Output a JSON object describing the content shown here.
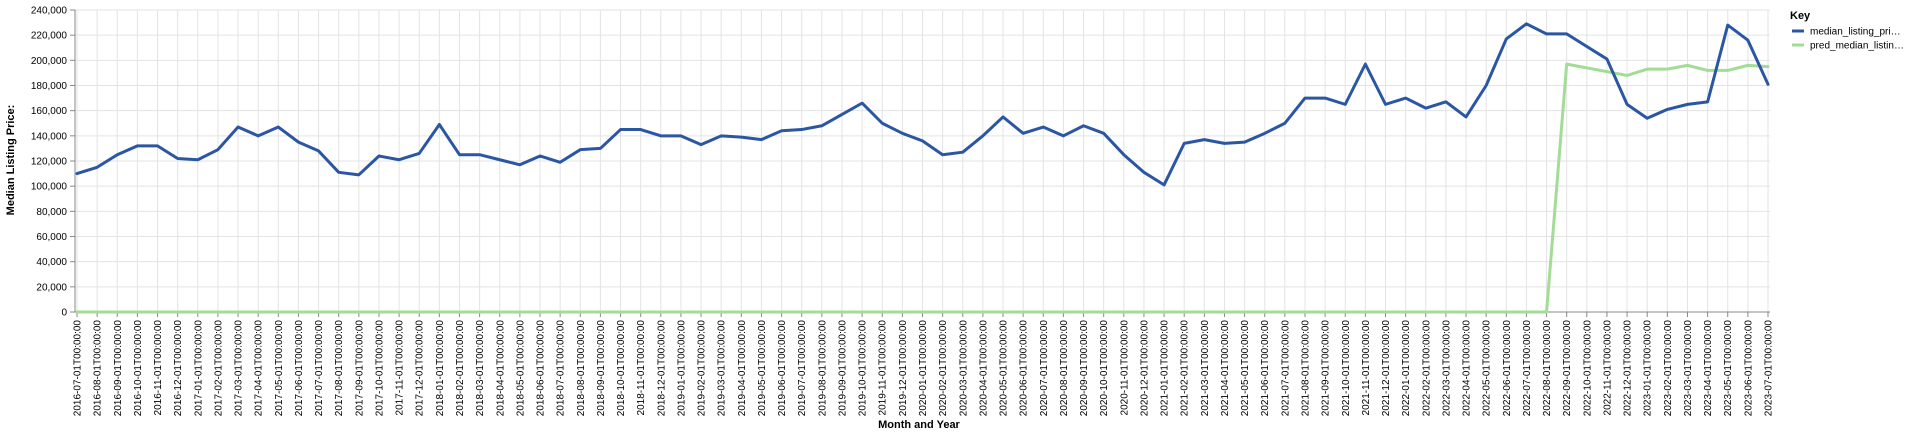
{
  "chart_data": {
    "type": "line",
    "xlabel": "Month and Year",
    "ylabel": "Median Listing Price:",
    "ylim": [
      0,
      240000
    ],
    "yticks": [
      0,
      20000,
      40000,
      60000,
      80000,
      100000,
      120000,
      140000,
      160000,
      180000,
      200000,
      220000,
      240000
    ],
    "ytick_labels": [
      "0",
      "20,000",
      "40,000",
      "60,000",
      "80,000",
      "100,000",
      "120,000",
      "140,000",
      "160,000",
      "180,000",
      "200,000",
      "220,000",
      "240,000"
    ],
    "grid": true,
    "legend": {
      "title": "Key",
      "placement": "right"
    },
    "x": [
      "2016-07-01T00:00:00",
      "2016-08-01T00:00:00",
      "2016-09-01T00:00:00",
      "2016-10-01T00:00:00",
      "2016-11-01T00:00:00",
      "2016-12-01T00:00:00",
      "2017-01-01T00:00:00",
      "2017-02-01T00:00:00",
      "2017-03-01T00:00:00",
      "2017-04-01T00:00:00",
      "2017-05-01T00:00:00",
      "2017-06-01T00:00:00",
      "2017-07-01T00:00:00",
      "2017-08-01T00:00:00",
      "2017-09-01T00:00:00",
      "2017-10-01T00:00:00",
      "2017-11-01T00:00:00",
      "2017-12-01T00:00:00",
      "2018-01-01T00:00:00",
      "2018-02-01T00:00:00",
      "2018-03-01T00:00:00",
      "2018-04-01T00:00:00",
      "2018-05-01T00:00:00",
      "2018-06-01T00:00:00",
      "2018-07-01T00:00:00",
      "2018-08-01T00:00:00",
      "2018-09-01T00:00:00",
      "2018-10-01T00:00:00",
      "2018-11-01T00:00:00",
      "2018-12-01T00:00:00",
      "2019-01-01T00:00:00",
      "2019-02-01T00:00:00",
      "2019-03-01T00:00:00",
      "2019-04-01T00:00:00",
      "2019-05-01T00:00:00",
      "2019-06-01T00:00:00",
      "2019-07-01T00:00:00",
      "2019-08-01T00:00:00",
      "2019-09-01T00:00:00",
      "2019-10-01T00:00:00",
      "2019-11-01T00:00:00",
      "2019-12-01T00:00:00",
      "2020-01-01T00:00:00",
      "2020-02-01T00:00:00",
      "2020-03-01T00:00:00",
      "2020-04-01T00:00:00",
      "2020-05-01T00:00:00",
      "2020-06-01T00:00:00",
      "2020-07-01T00:00:00",
      "2020-08-01T00:00:00",
      "2020-09-01T00:00:00",
      "2020-10-01T00:00:00",
      "2020-11-01T00:00:00",
      "2020-12-01T00:00:00",
      "2021-01-01T00:00:00",
      "2021-02-01T00:00:00",
      "2021-03-01T00:00:00",
      "2021-04-01T00:00:00",
      "2021-05-01T00:00:00",
      "2021-06-01T00:00:00",
      "2021-07-01T00:00:00",
      "2021-08-01T00:00:00",
      "2021-09-01T00:00:00",
      "2021-10-01T00:00:00",
      "2021-11-01T00:00:00",
      "2021-12-01T00:00:00",
      "2022-01-01T00:00:00",
      "2022-02-01T00:00:00",
      "2022-03-01T00:00:00",
      "2022-04-01T00:00:00",
      "2022-05-01T00:00:00",
      "2022-06-01T00:00:00",
      "2022-07-01T00:00:00",
      "2022-08-01T00:00:00",
      "2022-09-01T00:00:00",
      "2022-10-01T00:00:00",
      "2022-11-01T00:00:00",
      "2022-12-01T00:00:00",
      "2023-01-01T00:00:00",
      "2023-02-01T00:00:00",
      "2023-03-01T00:00:00",
      "2023-04-01T00:00:00",
      "2023-05-01T00:00:00",
      "2023-06-01T00:00:00",
      "2023-07-01T00:00:00"
    ],
    "series": [
      {
        "name": "median_listing_pri…",
        "color": "#2a56a3",
        "values": [
          110000,
          115000,
          125000,
          132000,
          132000,
          122000,
          121000,
          129000,
          147000,
          140000,
          147000,
          135000,
          128000,
          111000,
          109000,
          124000,
          121000,
          126000,
          149000,
          125000,
          125000,
          121000,
          117000,
          124000,
          119000,
          129000,
          130000,
          145000,
          145000,
          140000,
          140000,
          133000,
          140000,
          139000,
          137000,
          144000,
          145000,
          148000,
          157000,
          166000,
          150000,
          142000,
          136000,
          125000,
          127000,
          140000,
          155000,
          142000,
          147000,
          140000,
          148000,
          142000,
          125000,
          111000,
          101000,
          134000,
          137000,
          134000,
          135000,
          142000,
          150000,
          170000,
          170000,
          165000,
          197000,
          165000,
          170000,
          162000,
          167000,
          155000,
          180000,
          217000,
          229000,
          221000,
          221000,
          211000,
          201000,
          165000,
          154000,
          161000,
          165000,
          167000,
          228000,
          216000,
          181000
        ]
      },
      {
        "name": "pred_median_listin…",
        "color": "#a3dc96",
        "values": [
          0,
          0,
          0,
          0,
          0,
          0,
          0,
          0,
          0,
          0,
          0,
          0,
          0,
          0,
          0,
          0,
          0,
          0,
          0,
          0,
          0,
          0,
          0,
          0,
          0,
          0,
          0,
          0,
          0,
          0,
          0,
          0,
          0,
          0,
          0,
          0,
          0,
          0,
          0,
          0,
          0,
          0,
          0,
          0,
          0,
          0,
          0,
          0,
          0,
          0,
          0,
          0,
          0,
          0,
          0,
          0,
          0,
          0,
          0,
          0,
          0,
          0,
          0,
          0,
          0,
          0,
          0,
          0,
          0,
          0,
          0,
          0,
          0,
          0,
          197000,
          194000,
          191000,
          188000,
          193000,
          193000,
          196000,
          192000,
          192000,
          196000,
          195000
        ]
      }
    ]
  }
}
